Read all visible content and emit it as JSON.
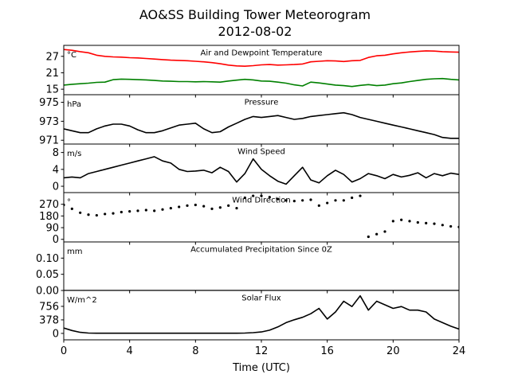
{
  "figure": {
    "title_line1": "AO&SS Building Tower Meteorogram",
    "title_line2": "2012-08-02"
  },
  "chart_data": [
    {
      "type": "line",
      "title": "Air and Dewpoint Temperature",
      "unit": "°C",
      "xlim": [
        0,
        24
      ],
      "ylim": [
        13,
        31
      ],
      "yticks": [
        15,
        21,
        27
      ],
      "series": [
        {
          "color": "#ff0000",
          "x": [
            0,
            0.5,
            1,
            1.5,
            2,
            2.5,
            3,
            3.5,
            4,
            4.5,
            5,
            5.5,
            6,
            6.5,
            7,
            7.5,
            8,
            8.5,
            9,
            9.5,
            10,
            10.5,
            11,
            11.5,
            12,
            12.5,
            13,
            13.5,
            14,
            14.5,
            15,
            15.5,
            16,
            16.5,
            17,
            17.5,
            18,
            18.5,
            19,
            19.5,
            20,
            20.5,
            21,
            21.5,
            22,
            22.5,
            23,
            23.5,
            24
          ],
          "y": [
            29.5,
            29.2,
            28.7,
            28.3,
            27.4,
            27.0,
            26.8,
            26.7,
            26.5,
            26.4,
            26.2,
            26.0,
            25.8,
            25.6,
            25.5,
            25.4,
            25.2,
            25.0,
            24.7,
            24.3,
            23.8,
            23.5,
            23.4,
            23.6,
            23.9,
            24.0,
            23.8,
            23.9,
            24.0,
            24.2,
            25.0,
            25.2,
            25.4,
            25.3,
            25.1,
            25.4,
            25.5,
            26.6,
            27.2,
            27.4,
            27.9,
            28.3,
            28.6,
            28.8,
            29.0,
            28.9,
            28.7,
            28.6,
            28.5
          ]
        },
        {
          "color": "#008000",
          "x": [
            0,
            0.5,
            1,
            1.5,
            2,
            2.5,
            3,
            3.5,
            4,
            4.5,
            5,
            5.5,
            6,
            6.5,
            7,
            7.5,
            8,
            8.5,
            9,
            9.5,
            10,
            10.5,
            11,
            11.5,
            12,
            12.5,
            13,
            13.5,
            14,
            14.5,
            15,
            15.5,
            16,
            16.5,
            17,
            17.5,
            18,
            18.5,
            19,
            19.5,
            20,
            20.5,
            21,
            21.5,
            22,
            22.5,
            23,
            23.5,
            24
          ],
          "y": [
            16.5,
            16.8,
            17.0,
            17.2,
            17.5,
            17.6,
            18.5,
            18.7,
            18.6,
            18.5,
            18.4,
            18.2,
            18.0,
            17.9,
            17.8,
            17.8,
            17.7,
            17.8,
            17.7,
            17.6,
            18.0,
            18.3,
            18.6,
            18.4,
            18.0,
            17.9,
            17.6,
            17.2,
            16.6,
            16.2,
            17.6,
            17.3,
            16.9,
            16.5,
            16.3,
            16.0,
            16.4,
            16.7,
            16.3,
            16.5,
            17.0,
            17.3,
            17.8,
            18.2,
            18.6,
            18.8,
            18.9,
            18.6,
            18.4
          ]
        }
      ]
    },
    {
      "type": "line",
      "title": "Pressure",
      "unit": "hPa",
      "xlim": [
        0,
        24
      ],
      "ylim": [
        970.6,
        975.8
      ],
      "yticks": [
        971,
        973,
        975
      ],
      "series": [
        {
          "color": "#000000",
          "x": [
            0,
            0.5,
            1,
            1.5,
            2,
            2.5,
            3,
            3.5,
            4,
            4.5,
            5,
            5.5,
            6,
            6.5,
            7,
            7.5,
            8,
            8.5,
            9,
            9.5,
            10,
            10.5,
            11,
            11.5,
            12,
            12.5,
            13,
            13.5,
            14,
            14.5,
            15,
            15.5,
            16,
            16.5,
            17,
            17.5,
            18,
            18.5,
            19,
            19.5,
            20,
            20.5,
            21,
            21.5,
            22,
            22.5,
            23,
            23.5,
            24
          ],
          "y": [
            972.2,
            972.0,
            971.8,
            971.8,
            972.2,
            972.5,
            972.7,
            972.7,
            972.5,
            972.1,
            971.8,
            971.8,
            972.0,
            972.3,
            972.6,
            972.7,
            972.8,
            972.2,
            971.8,
            971.9,
            972.4,
            972.8,
            973.2,
            973.5,
            973.4,
            973.5,
            973.6,
            973.4,
            973.2,
            973.3,
            973.5,
            973.6,
            973.7,
            973.8,
            973.9,
            973.7,
            973.4,
            973.2,
            973.0,
            972.8,
            972.6,
            972.4,
            972.2,
            972.0,
            971.8,
            971.6,
            971.3,
            971.2,
            971.2
          ]
        }
      ]
    },
    {
      "type": "line",
      "title": "Wind Speed",
      "unit": "m/s",
      "xlim": [
        0,
        24
      ],
      "ylim": [
        -1.5,
        10
      ],
      "yticks": [
        0,
        4,
        8
      ],
      "series": [
        {
          "color": "#000000",
          "x": [
            0,
            0.5,
            1,
            1.5,
            2,
            2.5,
            3,
            3.5,
            4,
            4.5,
            5,
            5.5,
            6,
            6.5,
            7,
            7.5,
            8,
            8.5,
            9,
            9.5,
            10,
            10.5,
            11,
            11.5,
            12,
            12.5,
            13,
            13.5,
            14,
            14.5,
            15,
            15.5,
            16,
            16.5,
            17,
            17.5,
            18,
            18.5,
            19,
            19.5,
            20,
            20.5,
            21,
            21.5,
            22,
            22.5,
            23,
            23.5,
            24
          ],
          "y": [
            2.0,
            2.2,
            2.0,
            3.0,
            3.5,
            4.0,
            4.5,
            5.0,
            5.5,
            6.0,
            6.5,
            7.0,
            6.0,
            5.5,
            4.0,
            3.5,
            3.6,
            3.8,
            3.2,
            4.5,
            3.5,
            1.0,
            3.0,
            6.5,
            4.0,
            2.5,
            1.2,
            0.5,
            2.5,
            4.5,
            1.5,
            0.8,
            2.5,
            3.8,
            2.8,
            1.0,
            1.8,
            3.0,
            2.5,
            1.8,
            2.8,
            2.2,
            2.6,
            3.2,
            2.0,
            3.0,
            2.5,
            3.1,
            2.8
          ]
        }
      ]
    },
    {
      "type": "scatter",
      "title": "Wind Direction",
      "unit": "°",
      "xlim": [
        0,
        24
      ],
      "ylim": [
        -20,
        360
      ],
      "yticks": [
        0,
        90,
        180,
        270
      ],
      "series": [
        {
          "color": "#000000",
          "x": [
            0,
            0.5,
            1,
            1.5,
            2,
            2.5,
            3,
            3.5,
            4,
            4.5,
            5,
            5.5,
            6,
            6.5,
            7,
            7.5,
            8,
            8.5,
            9,
            9.5,
            10,
            10.5,
            11,
            11.5,
            12,
            12.5,
            13,
            13.5,
            14,
            14.5,
            15,
            15.5,
            16,
            16.5,
            17,
            17.5,
            18,
            18.5,
            19,
            19.5,
            20,
            20.5,
            21,
            21.5,
            22,
            22.5,
            23,
            23.5,
            24
          ],
          "y": [
            265,
            235,
            205,
            190,
            185,
            195,
            200,
            210,
            215,
            220,
            225,
            220,
            230,
            240,
            250,
            260,
            265,
            255,
            235,
            245,
            260,
            240,
            320,
            335,
            335,
            325,
            310,
            300,
            295,
            300,
            305,
            260,
            280,
            300,
            300,
            320,
            335,
            20,
            40,
            60,
            140,
            150,
            140,
            130,
            125,
            120,
            110,
            100,
            95
          ]
        }
      ]
    },
    {
      "type": "line",
      "title": "Accumulated Precipitation Since 0Z",
      "unit": "mm",
      "xlim": [
        0,
        24
      ],
      "ylim": [
        0,
        0.15
      ],
      "yticks": [
        0.0,
        0.05,
        0.1
      ],
      "yticklabels": [
        "0.00",
        "0.05",
        "0.10"
      ],
      "series": [
        {
          "color": "#000000",
          "x": [
            0,
            24
          ],
          "y": [
            0,
            0
          ]
        }
      ]
    },
    {
      "type": "line",
      "title": "Solar Flux",
      "unit": "W/m^2",
      "xlim": [
        0,
        24
      ],
      "ylim": [
        -180,
        1200
      ],
      "yticks": [
        0,
        378,
        756
      ],
      "xticks": [
        0,
        4,
        8,
        12,
        16,
        20,
        24
      ],
      "xlabel": "Time (UTC)",
      "series": [
        {
          "color": "#000000",
          "x": [
            0,
            0.5,
            1,
            1.5,
            2,
            2.5,
            3,
            3.5,
            4,
            4.5,
            5,
            5.5,
            6,
            6.5,
            7,
            7.5,
            8,
            8.5,
            9,
            9.5,
            10,
            10.5,
            11,
            11.5,
            12,
            12.5,
            13,
            13.5,
            14,
            14.5,
            15,
            15.5,
            16,
            16.5,
            17,
            17.5,
            18,
            18.5,
            19,
            19.5,
            20,
            20.5,
            21,
            21.5,
            22,
            22.5,
            23,
            23.5,
            24
          ],
          "y": [
            150,
            80,
            30,
            10,
            5,
            5,
            5,
            5,
            5,
            5,
            5,
            5,
            5,
            5,
            5,
            5,
            5,
            5,
            5,
            5,
            5,
            5,
            10,
            20,
            40,
            90,
            180,
            300,
            380,
            450,
            550,
            700,
            400,
            600,
            900,
            750,
            1050,
            650,
            900,
            800,
            700,
            750,
            650,
            650,
            600,
            400,
            300,
            200,
            120
          ]
        }
      ]
    }
  ]
}
